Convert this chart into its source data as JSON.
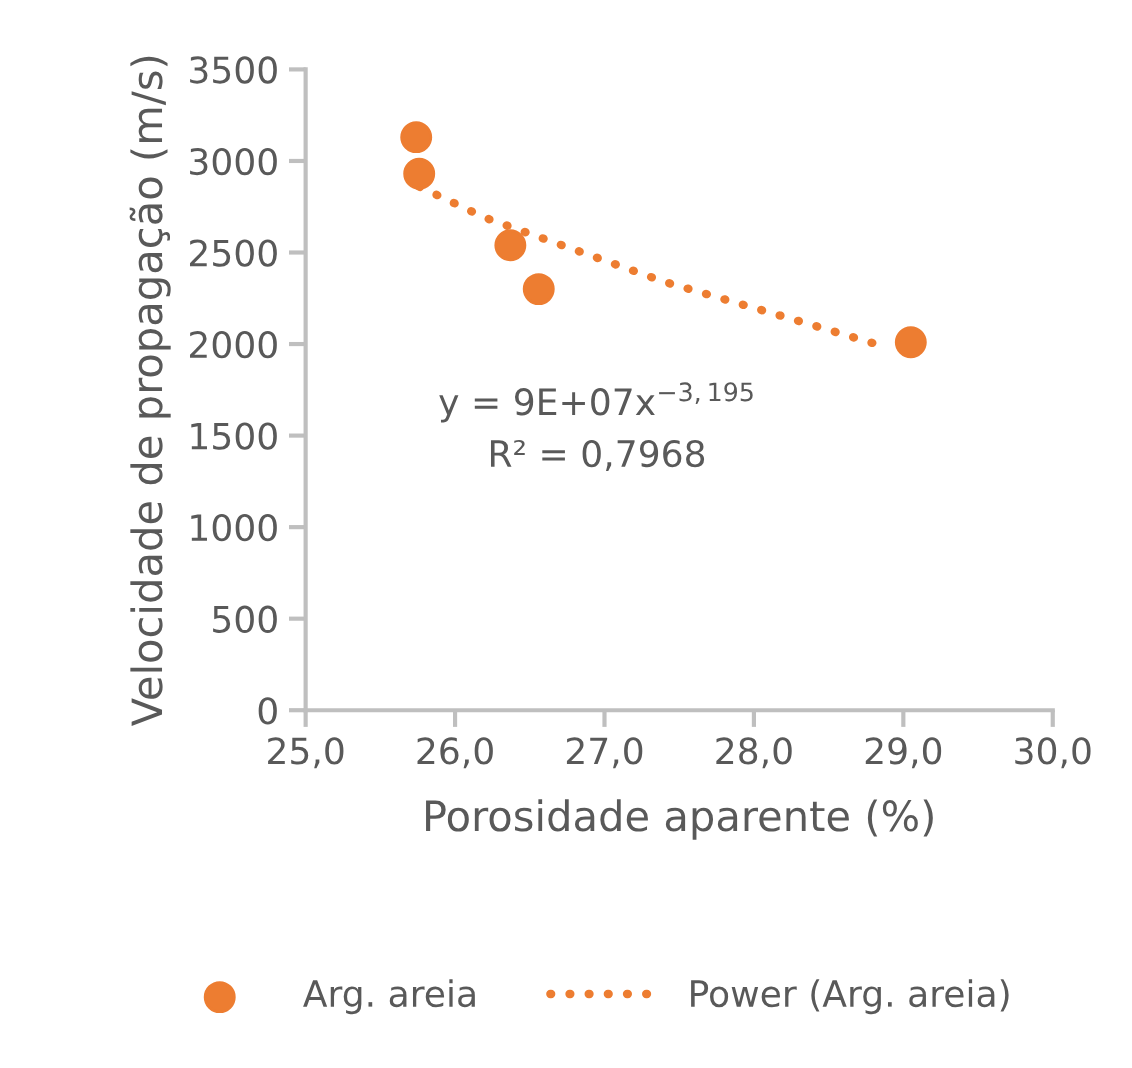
{
  "chart_data": {
    "type": "scatter",
    "xlabel": "Porosidade aparente (%)",
    "ylabel": "Velocidade de propagação (m/s)",
    "x": [
      25.74,
      25.76,
      26.37,
      26.56,
      29.05
    ],
    "series": [
      {
        "name": "Arg. areia",
        "color": "#ed7d31",
        "marker": "circle",
        "values": [
          3130,
          2930,
          2540,
          2300,
          2010
        ]
      },
      {
        "name": "Power (Arg. areia)",
        "type": "line",
        "color": "#ed7d31",
        "line_style": "dotted",
        "marker": "none",
        "x": [
          25.76,
          26.2,
          26.68,
          27.4,
          28.2,
          28.9
        ],
        "values": [
          2860,
          2690,
          2550,
          2340,
          2150,
          1980
        ]
      }
    ],
    "xlim": [
      25.0,
      30.0
    ],
    "xticks": [
      {
        "value": 25,
        "label": "25,0"
      },
      {
        "value": 26,
        "label": "26,0"
      },
      {
        "value": 27,
        "label": "27,0"
      },
      {
        "value": 28,
        "label": "28,0"
      },
      {
        "value": 29,
        "label": "29,0"
      },
      {
        "value": 30,
        "label": "30,0"
      }
    ],
    "ylim": [
      0,
      3500
    ],
    "yticks": [
      0,
      500,
      1000,
      1500,
      2000,
      2500,
      3000,
      3500
    ],
    "annotations": [
      "y = 9E+07x$^{−3,195}$\nR² = 0,7968"
    ],
    "grid": false,
    "legend": "bottom"
  }
}
